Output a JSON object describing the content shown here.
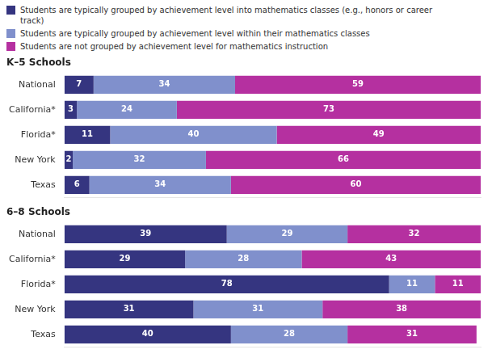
{
  "chart_data": [
    {
      "type": "bar",
      "orientation": "horizontal",
      "stacked": true,
      "title": "K–5 Schools",
      "categories": [
        "National",
        "California*",
        "Florida*",
        "New York",
        "Texas"
      ],
      "series": [
        {
          "name": "Students are typically grouped by achievement level into mathematics classes (e.g., honors or career\ntrack)",
          "color": "#353580",
          "values": [
            7,
            3,
            11,
            2,
            6
          ]
        },
        {
          "name": "Students are typically grouped by achievement level within their mathematics classes",
          "color": "#8090cc",
          "values": [
            34,
            24,
            40,
            32,
            34
          ]
        },
        {
          "name": "Students are not grouped by achievement level for mathematics instruction",
          "color": "#b530a0",
          "values": [
            59,
            73,
            49,
            66,
            60
          ]
        }
      ],
      "xlim": [
        0,
        100
      ],
      "tick_labels": "y",
      "data_labels": true,
      "grid": false,
      "legend": "top"
    },
    {
      "type": "bar",
      "orientation": "horizontal",
      "stacked": true,
      "title": "6–8 Schools",
      "categories": [
        "National",
        "California*",
        "Florida*",
        "New York",
        "Texas"
      ],
      "series": [
        {
          "name": "Students are typically grouped by achievement level into mathematics classes (e.g., honors or career\ntrack)",
          "color": "#353580",
          "values": [
            39,
            29,
            78,
            31,
            40
          ]
        },
        {
          "name": "Students are typically grouped by achievement level within their mathematics classes",
          "color": "#8090cc",
          "values": [
            29,
            28,
            11,
            31,
            28
          ]
        },
        {
          "name": "Students are not grouped by achievement level for mathematics instruction",
          "color": "#b530a0",
          "values": [
            32,
            43,
            11,
            38,
            31
          ]
        }
      ],
      "xlim": [
        0,
        100
      ],
      "tick_labels": "y",
      "data_labels": true,
      "grid": false
    }
  ]
}
